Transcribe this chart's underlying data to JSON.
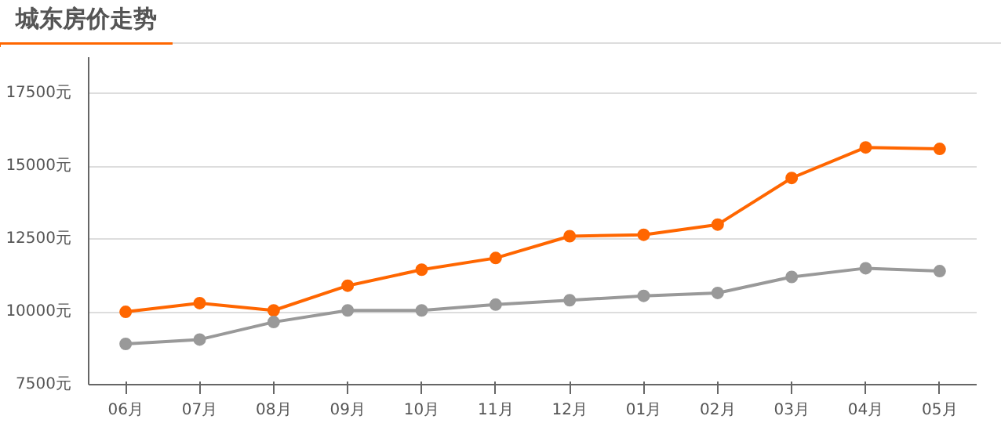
{
  "chart_data": {
    "type": "line",
    "title": "城东房价走势",
    "categories": [
      "06月",
      "07月",
      "08月",
      "09月",
      "10月",
      "11月",
      "12月",
      "01月",
      "02月",
      "03月",
      "04月",
      "05月"
    ],
    "series": [
      {
        "color": "#ff6600",
        "values": [
          10000,
          10300,
          10050,
          10900,
          11450,
          11850,
          12600,
          12650,
          13000,
          14600,
          15650,
          15600
        ]
      },
      {
        "color": "#999999",
        "values": [
          8900,
          9050,
          9650,
          10050,
          10050,
          10250,
          10400,
          10550,
          10650,
          11200,
          11500,
          11400
        ]
      }
    ],
    "ylim": [
      7500,
      18750
    ],
    "yticks": [
      {
        "value": 7500,
        "label": "7500元"
      },
      {
        "value": 10000,
        "label": "10000元"
      },
      {
        "value": 12500,
        "label": "12500元"
      },
      {
        "value": 15000,
        "label": "15000元"
      },
      {
        "value": 17500,
        "label": "17500元"
      }
    ],
    "grid": "y",
    "marker": "circle",
    "line_style": "solid"
  }
}
